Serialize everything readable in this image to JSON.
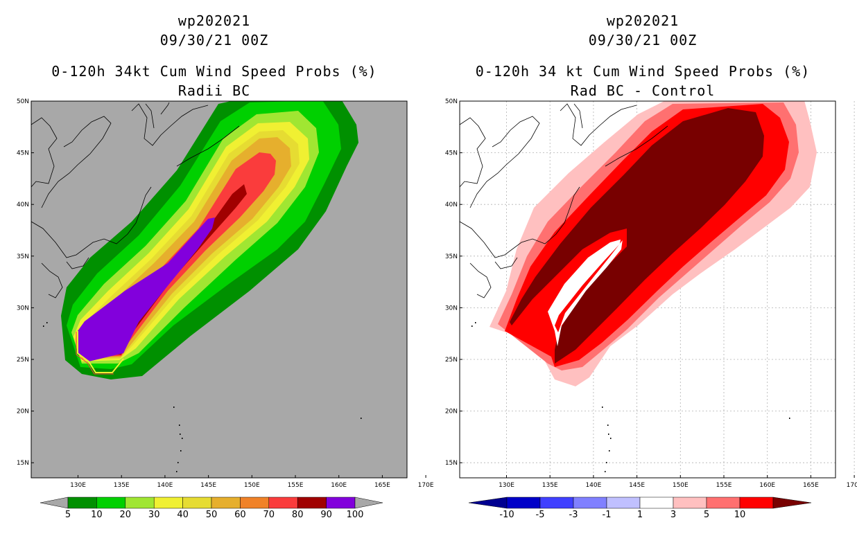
{
  "left": {
    "title_line1": "wp202021",
    "title_line2": "09/30/21 00Z",
    "title_line3": "0-120h 34kt Cum Wind Speed Probs (%)",
    "title_line4": "Radii BC",
    "background": "#a8a8a8",
    "colorbar": {
      "colors": [
        "#009000",
        "#00d000",
        "#a0e632",
        "#f0f032",
        "#e6dc32",
        "#e6af2d",
        "#f08228",
        "#fa3c3c",
        "#a00000",
        "#8200dc"
      ],
      "labels": [
        "5",
        "10",
        "20",
        "30",
        "40",
        "50",
        "60",
        "70",
        "80",
        "90",
        "100"
      ],
      "under_color": "#a8a8a8",
      "over_color": "#a8a8a8"
    }
  },
  "right": {
    "title_line1": "wp202021",
    "title_line2": "09/30/21 00Z",
    "title_line3": "0-120h 34 kt Cum Wind Speed Probs (%)",
    "title_line4": "Rad BC - Control",
    "background": "#ffffff",
    "colorbar": {
      "colors": [
        "#0000c8",
        "#4040ff",
        "#8080ff",
        "#c0c0ff",
        "#ffffff",
        "#ffc0c0",
        "#ff7070",
        "#ff0000"
      ],
      "labels": [
        "-10",
        "-5",
        "-3",
        "-1",
        "1",
        "3",
        "5",
        "10"
      ],
      "under_color": "#000090",
      "over_color": "#780000"
    }
  },
  "axes": {
    "lon_labels": [
      "130E",
      "135E",
      "140E",
      "145E",
      "150E",
      "155E",
      "160E",
      "165E",
      "170E"
    ],
    "lat_labels": [
      "50N",
      "45N",
      "40N",
      "35N",
      "30N",
      "25N",
      "20N",
      "15N"
    ]
  }
}
